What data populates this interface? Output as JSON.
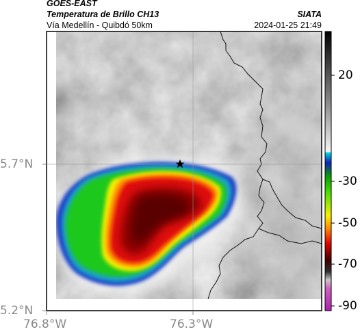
{
  "header": {
    "satellite": "GOES-EAST",
    "product": "Temperatura de Brillo CH13",
    "region": "Vía Medellín - Quibdó 50km",
    "agency": "SIATA",
    "timestamp": "2024-01-25 21:49"
  },
  "map": {
    "lat_ticks": [
      "5.7°N",
      "5.2°N"
    ],
    "lon_ticks": [
      "76.8°W",
      "76.3°W"
    ],
    "marker": "star-icon",
    "colors": {
      "storm_core": "#5a0000",
      "storm_red": "#e01010",
      "storm_yellow": "#f5f000",
      "storm_green": "#1ec81e",
      "storm_edge": "#1a3cc8",
      "background_cloud": "#8c8c8c",
      "boundary_line": "#111111"
    }
  },
  "colorbar": {
    "labels": [
      "20",
      "-30",
      "-50",
      "-70",
      "-90"
    ],
    "values": [
      20,
      -30,
      -50,
      -70,
      -90
    ]
  }
}
